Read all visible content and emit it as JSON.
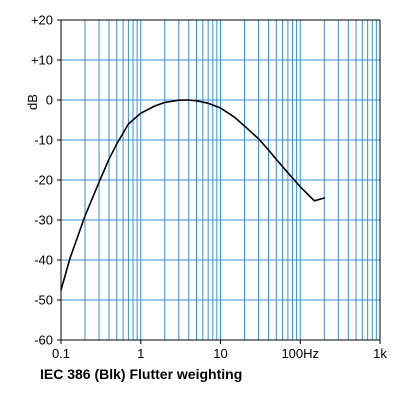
{
  "chart_data": {
    "type": "line",
    "title": "IEC 386 (Blk) Flutter weighting",
    "xlabel": "",
    "ylabel": "dB",
    "x_scale": "log",
    "xlim": [
      0.1,
      1000
    ],
    "ylim": [
      -60,
      20
    ],
    "grid": true,
    "colors": {
      "grid": "#3c8fd6",
      "line": "#000000",
      "frame": "#000000",
      "background": "#ffffff"
    },
    "x_tick_labels": [
      {
        "value": 0.1,
        "label": "0.1"
      },
      {
        "value": 1,
        "label": "1"
      },
      {
        "value": 10,
        "label": "10"
      },
      {
        "value": 100,
        "label": "100Hz"
      },
      {
        "value": 1000,
        "label": "1k"
      }
    ],
    "y_tick_labels": [
      {
        "value": 20,
        "label": "+20"
      },
      {
        "value": 10,
        "label": "+10"
      },
      {
        "value": 0,
        "label": "0"
      },
      {
        "value": -10,
        "label": "-10"
      },
      {
        "value": -20,
        "label": "-20"
      },
      {
        "value": -30,
        "label": "-30"
      },
      {
        "value": -40,
        "label": "-40"
      },
      {
        "value": -50,
        "label": "-50"
      },
      {
        "value": -60,
        "label": "-60"
      }
    ],
    "series": [
      {
        "x": [
          0.1,
          0.13,
          0.2,
          0.3,
          0.4,
          0.5,
          0.7,
          1,
          1.5,
          2,
          3,
          4,
          5,
          7,
          10,
          15,
          20,
          30,
          40,
          50,
          70,
          100,
          150,
          200
        ],
        "y": [
          -47.5,
          -39.5,
          -29,
          -20.5,
          -14.8,
          -11,
          -6,
          -3.3,
          -1.5,
          -0.6,
          -0.05,
          0,
          -0.2,
          -0.8,
          -2,
          -4.3,
          -6.5,
          -9.7,
          -12.5,
          -14.8,
          -18.2,
          -21.7,
          -25.2,
          -24.5
        ]
      }
    ]
  }
}
